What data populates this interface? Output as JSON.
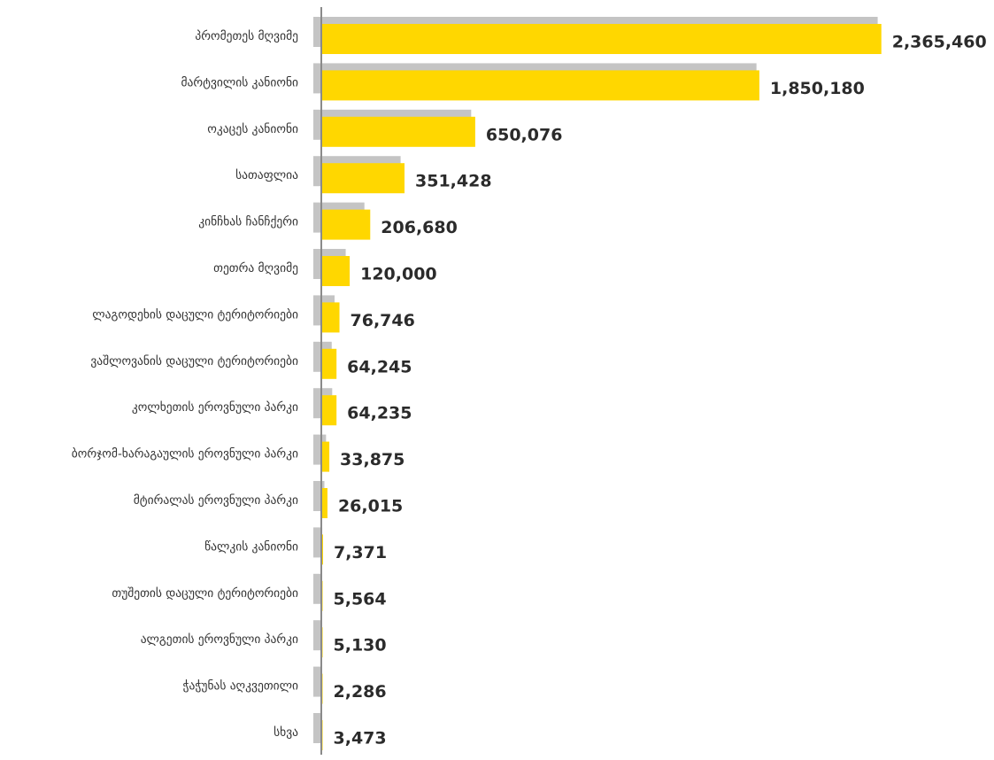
{
  "chart_data": {
    "type": "bar",
    "orientation": "horizontal",
    "categories": [
      "პრომეთეს მღვიმე",
      "მარტვილის კანიონი",
      "ოკაცეს კანიონი",
      "სათაფლია",
      "კინჩხას ჩანჩქერი",
      "თეთრა მღვიმე",
      "ლაგოდეხის დაცული ტერიტორიები",
      "ვაშლოვანის დაცული ტერიტორიები",
      "კოლხეთის ეროვნული პარკი",
      "ბორჯომ-ხარაგაულის ეროვნული პარკი",
      "მტირალას ეროვნული პარკი",
      "წალკის კანიონი",
      "თუშეთის დაცული ტერიტორიები",
      "ალგეთის ეროვნული პარკი",
      "ჭაჭუნას აღკვეთილი",
      "სხვა"
    ],
    "values": [
      2365460,
      1850180,
      650076,
      351428,
      206680,
      120000,
      76746,
      64245,
      64235,
      33875,
      26015,
      7371,
      5564,
      5130,
      2286,
      3473
    ],
    "value_labels": [
      "2,365,460",
      "1,850,180",
      "650,076",
      "351,428",
      "206,680",
      "120,000",
      "76,746",
      "64,245",
      "64,235",
      "33,875",
      "26,015",
      "7,371",
      "5,564",
      "5,130",
      "2,286",
      "3,473"
    ],
    "shadow_values": [
      2350000,
      1838000,
      633000,
      335000,
      182000,
      103000,
      56000,
      44000,
      46000,
      20000,
      13000,
      4000,
      3000,
      3000,
      1500,
      2000
    ],
    "xlim": [
      0,
      2430000
    ],
    "colors": {
      "bar": "#FFD700",
      "shadow": "#C4C4C4",
      "axis": "#8A8A8A",
      "label": "#333333",
      "value": "#2B2B2B"
    }
  }
}
